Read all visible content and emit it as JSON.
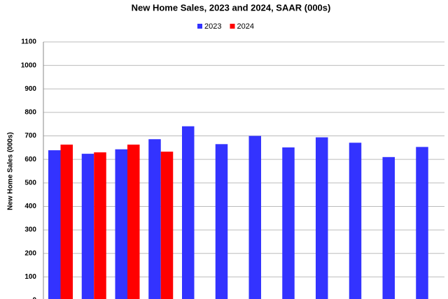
{
  "chart_data": {
    "type": "bar",
    "title": "New Home Sales,  2023 and 2024, SAAR (000s)",
    "y_label": "New Home Sales (000s)",
    "categories": [
      null,
      null,
      null,
      null,
      null,
      null,
      null,
      null,
      null,
      null,
      null,
      null
    ],
    "series": [
      {
        "name": "2023",
        "color": "#3333ff",
        "values": [
          639,
          624,
          643,
          686,
          741,
          665,
          700,
          651,
          694,
          671,
          610,
          653
        ]
      },
      {
        "name": "2024",
        "color": "#ff0000",
        "values": [
          663,
          630,
          663,
          633,
          null,
          null,
          null,
          null,
          null,
          null,
          null,
          null
        ]
      }
    ],
    "ylim": [
      0,
      1100
    ],
    "yticks": [
      0,
      100,
      200,
      300,
      400,
      500,
      600,
      700,
      800,
      900,
      1000,
      1100
    ],
    "grid": true,
    "legend": "top"
  }
}
